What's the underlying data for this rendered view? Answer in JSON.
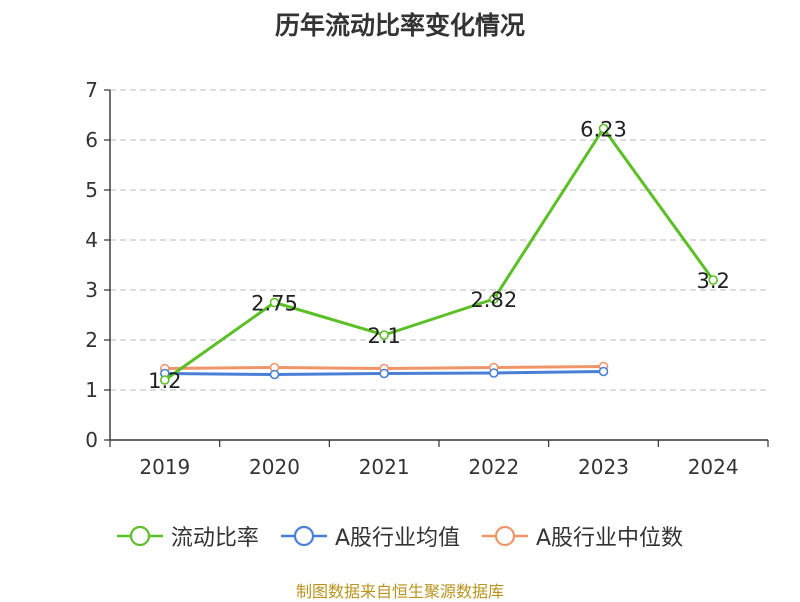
{
  "chart_data": {
    "type": "line",
    "title": "历年流动比率变化情况",
    "categories": [
      "2019",
      "2020",
      "2021",
      "2022",
      "2023",
      "2024"
    ],
    "ylim": [
      0,
      7
    ],
    "yticks": [
      0,
      1,
      2,
      3,
      4,
      5,
      6,
      7
    ],
    "grid": true,
    "legend_position": "bottom",
    "series": [
      {
        "name": "流动比率",
        "color": "#5bbf26",
        "values": [
          1.2,
          2.75,
          2.1,
          2.82,
          6.23,
          3.2
        ],
        "labels": [
          "1.2",
          "2.75",
          "2.1",
          "2.82",
          "6.23",
          "3.2"
        ]
      },
      {
        "name": "A股行业均值",
        "color": "#4a7fd6",
        "values": [
          1.33,
          1.31,
          1.33,
          1.34,
          1.37,
          null
        ]
      },
      {
        "name": "A股行业中位数",
        "color": "#f0956a",
        "values": [
          1.43,
          1.45,
          1.43,
          1.45,
          1.47,
          null
        ]
      }
    ]
  },
  "footer": {
    "source": "制图数据来自恒生聚源数据库"
  }
}
